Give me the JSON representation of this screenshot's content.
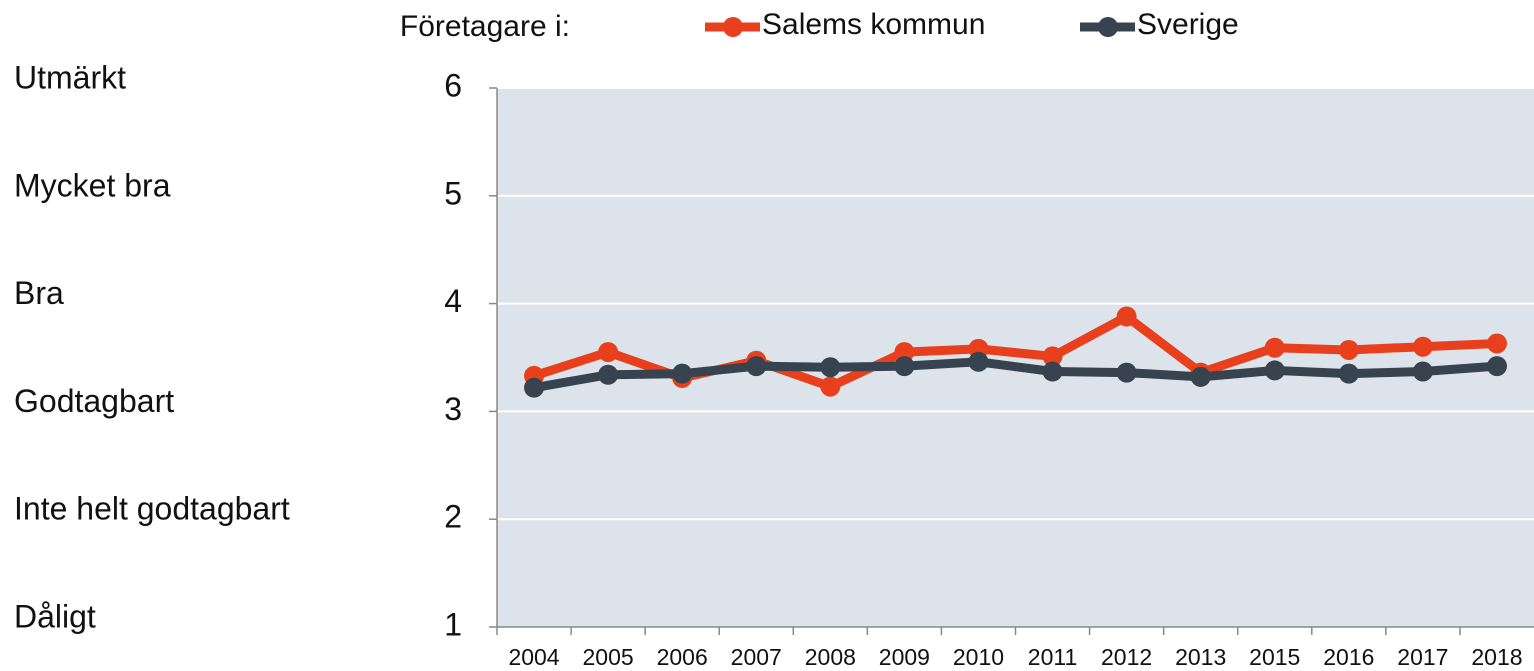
{
  "chart_data": {
    "type": "line",
    "legend_title": "Företagare i:",
    "categories": [
      "2004",
      "2005",
      "2006",
      "2007",
      "2008",
      "2009",
      "2010",
      "2011",
      "2012",
      "2013",
      "2015",
      "2016",
      "2017",
      "2018"
    ],
    "series": [
      {
        "name": "Salems kommun",
        "color": "#e8401c",
        "values": [
          3.33,
          3.55,
          3.31,
          3.47,
          3.23,
          3.55,
          3.58,
          3.51,
          3.88,
          3.36,
          3.59,
          3.57,
          3.6,
          3.63
        ]
      },
      {
        "name": "Sverige",
        "color": "#37434f",
        "values": [
          3.22,
          3.34,
          3.35,
          3.42,
          3.41,
          3.42,
          3.46,
          3.37,
          3.36,
          3.32,
          3.38,
          3.35,
          3.37,
          3.42
        ]
      }
    ],
    "ylim": [
      1,
      6
    ],
    "yticks": [
      1,
      2,
      3,
      4,
      5,
      6
    ],
    "scale_labels": [
      "Dåligt",
      "Inte helt godtagbart",
      "Godtagbart",
      "Bra",
      "Mycket bra",
      "Utmärkt"
    ],
    "grid": true
  }
}
